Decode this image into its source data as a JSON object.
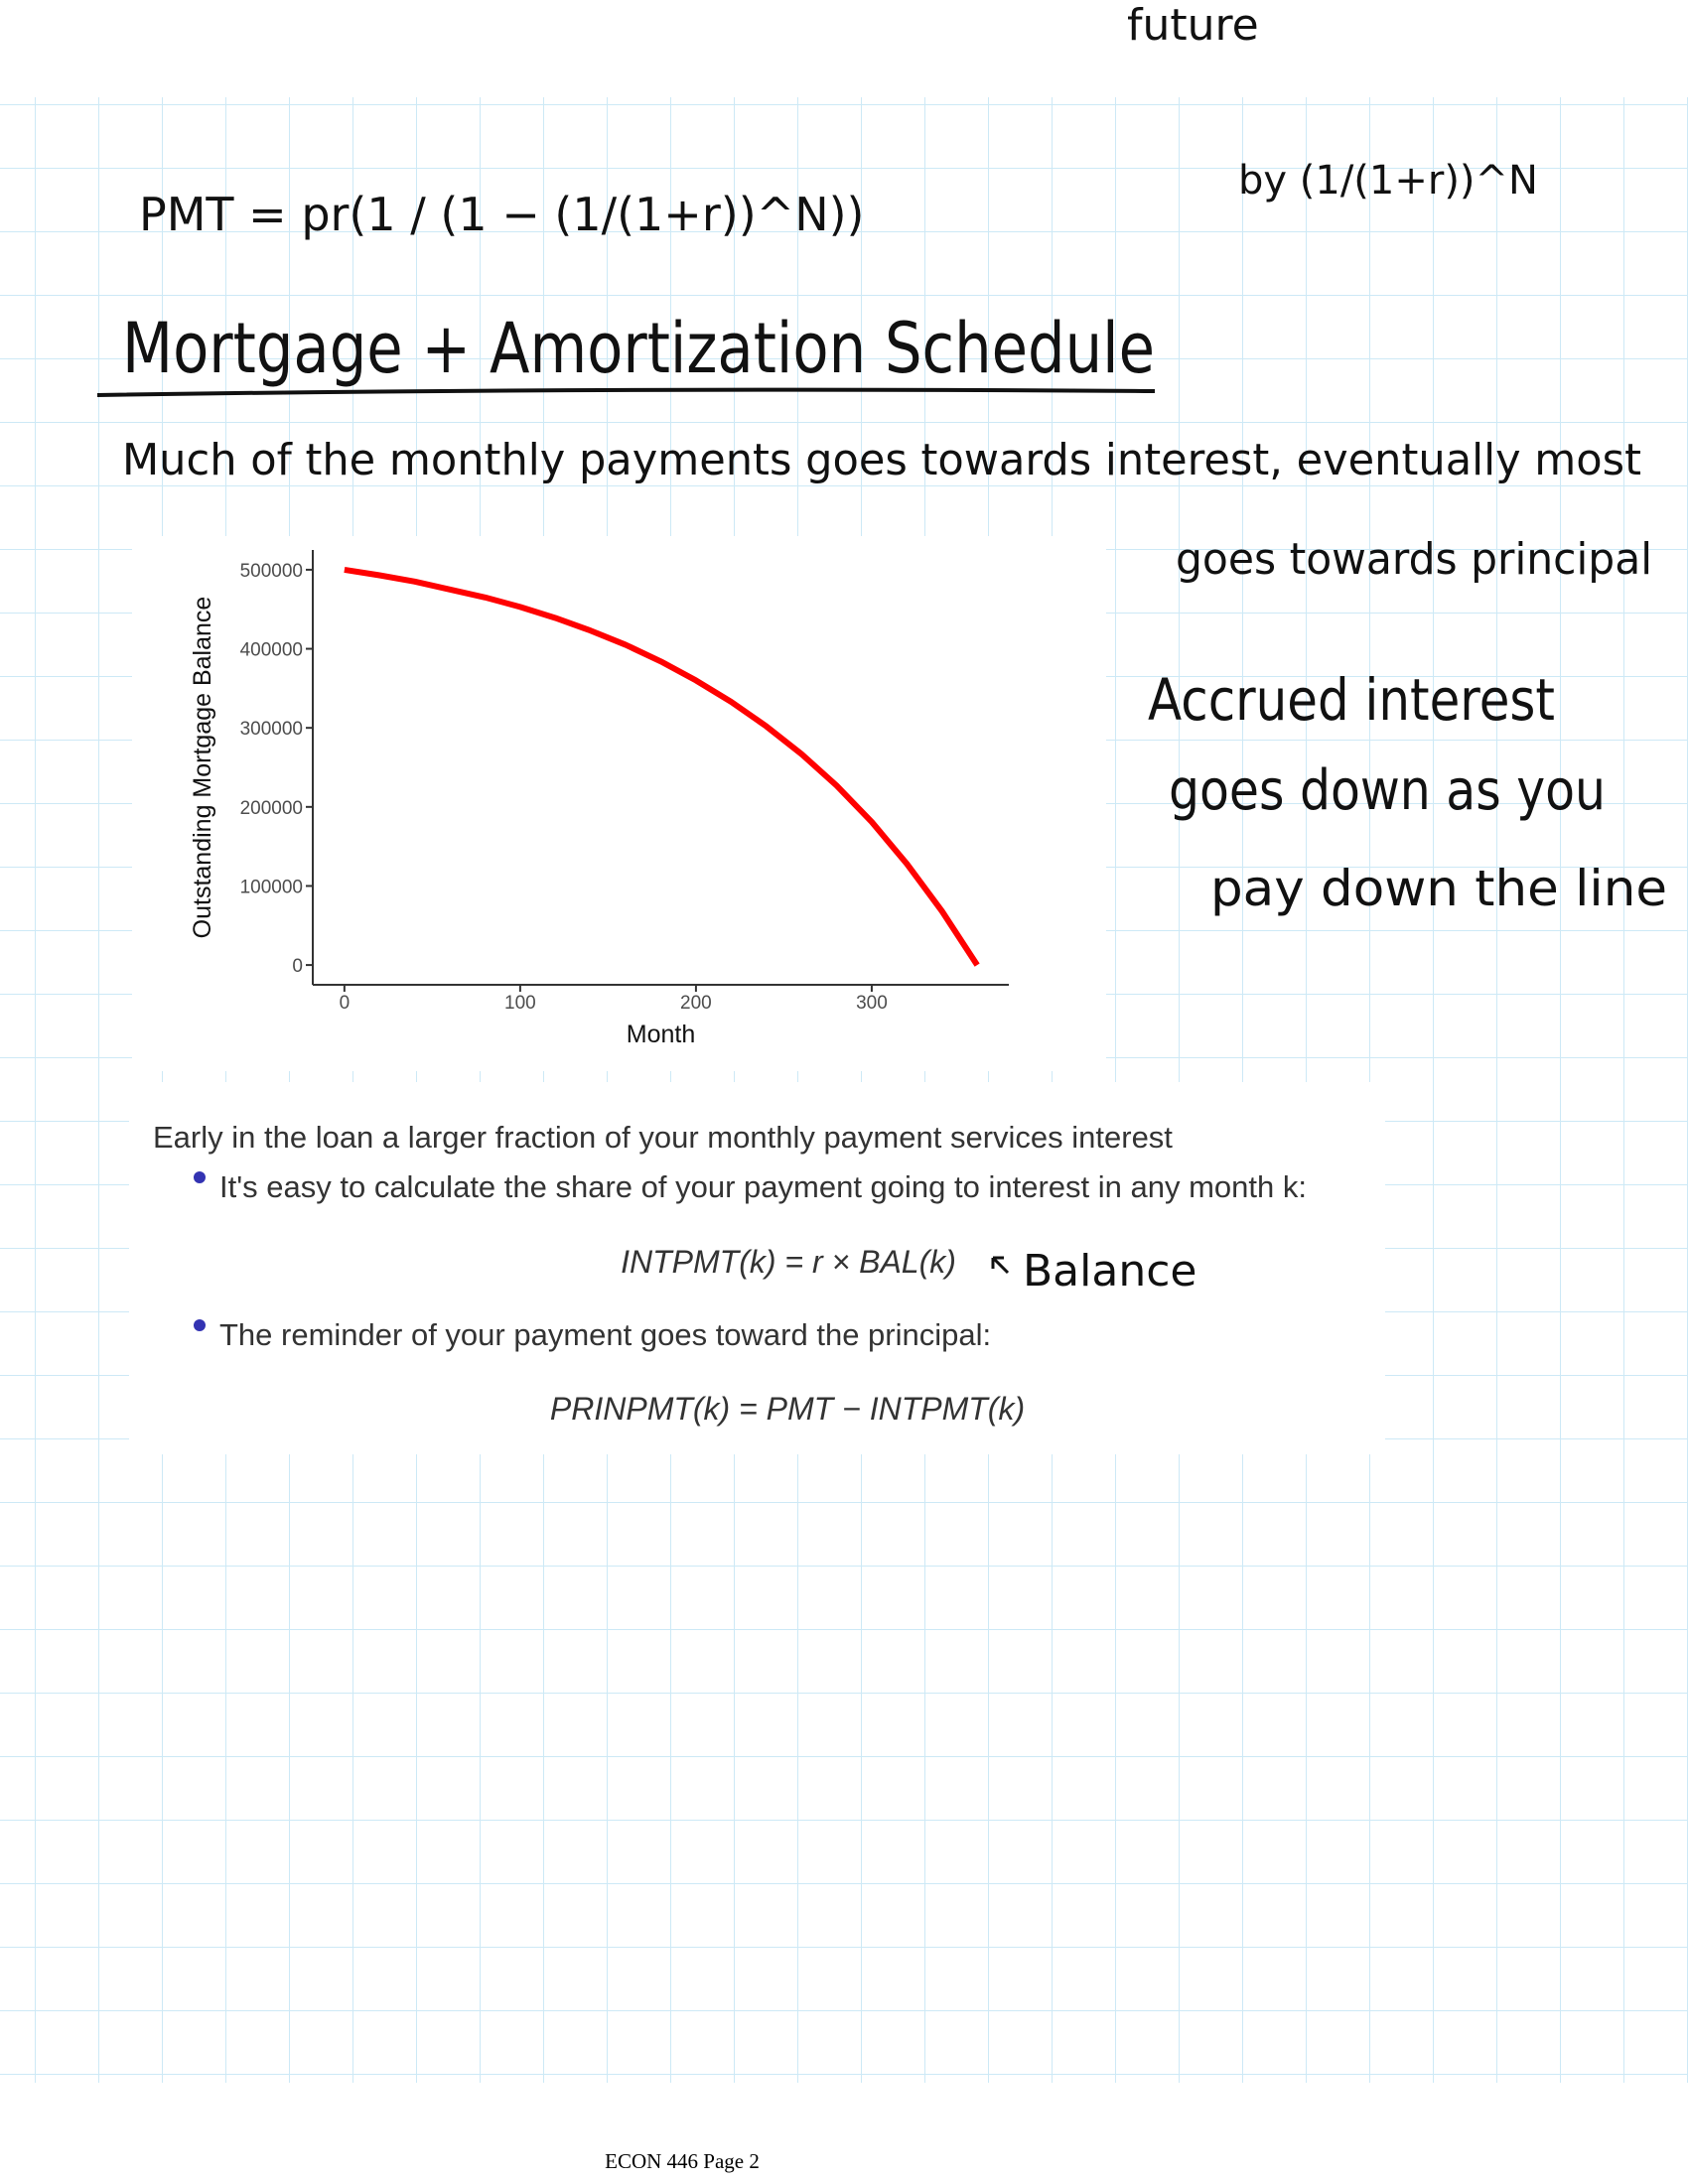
{
  "handwriting": {
    "top_right_note": "future",
    "discount_factor": "by (1/(1+r))^N",
    "payment_formula": "PMT = pr(1 / (1 − (1/(1+r))^N))",
    "title": "Mortgage + Amortization Schedule",
    "note_lines": [
      "Much of the monthly payments goes towards interest, eventually most",
      "goes towards principal"
    ],
    "accrued_lines": [
      "Accrued interest",
      "goes down as you",
      "pay down the line"
    ],
    "balance_note": "Balance"
  },
  "chart_data": {
    "type": "line",
    "x_label": "Month",
    "y_label": "Outstanding Mortgage Balance",
    "x": [
      0,
      20,
      40,
      60,
      80,
      100,
      120,
      140,
      160,
      180,
      200,
      220,
      240,
      260,
      280,
      300,
      320,
      340,
      360
    ],
    "series": [
      {
        "color": "#ff0000",
        "values": [
          500000,
          493000,
          485000,
          475000,
          465000,
          453000,
          439000,
          423000,
          405000,
          384000,
          360000,
          333000,
          302000,
          267000,
          227000,
          181000,
          128000,
          68000,
          0
        ]
      }
    ],
    "xlim": [
      -18,
      378
    ],
    "ylim": [
      -25000,
      525000
    ],
    "xticks": [
      0,
      100,
      200,
      300
    ],
    "yticks": [
      0,
      100000,
      200000,
      300000,
      400000,
      500000
    ]
  },
  "slide": {
    "heading": "Early in the loan a larger fraction of your monthly payment services interest",
    "bullets": [
      {
        "text": "It's easy to calculate the share of your payment going to interest in any month k:",
        "equation": "INTPMT(k) = r × BAL(k)"
      },
      {
        "text": "The reminder of your payment goes toward the principal:",
        "equation": "PRINPMT(k) = PMT − INTPMT(k)"
      }
    ]
  },
  "footer": "ECON 446 Page 2"
}
